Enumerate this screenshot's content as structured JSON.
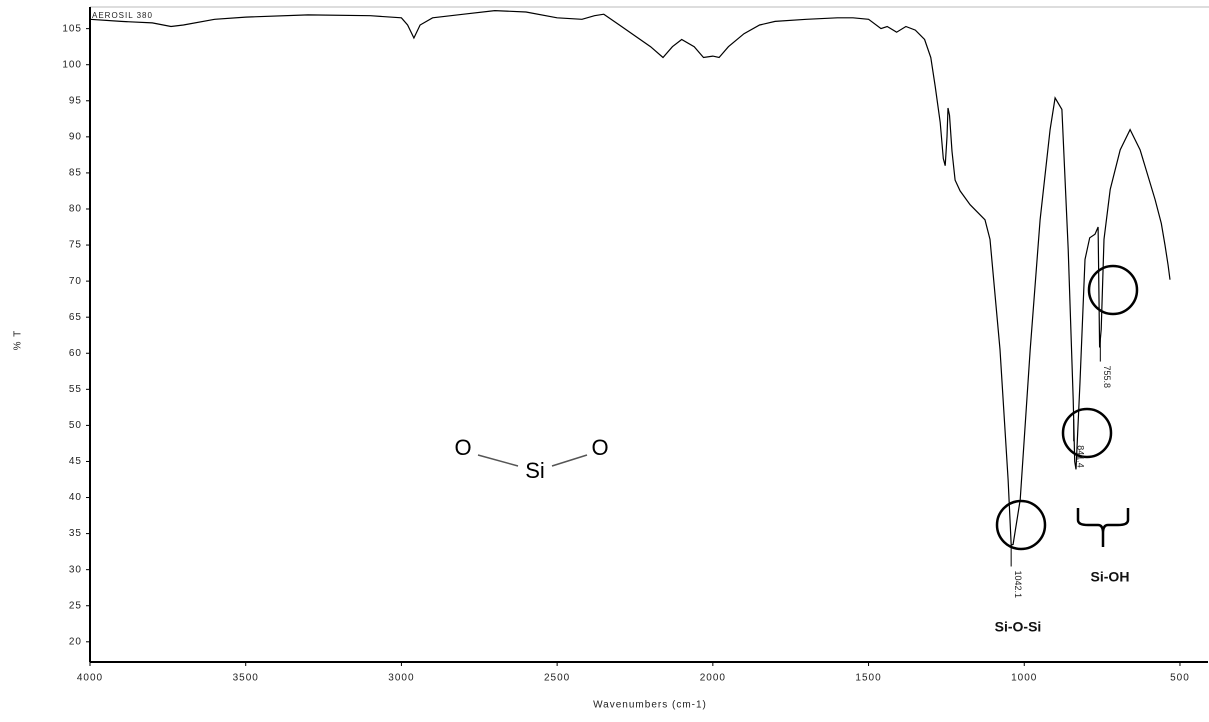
{
  "chart_data": {
    "type": "line",
    "sample_label": "AEROSIL 380",
    "x_label": "Wavenumbers (cm-1)",
    "y_label": "% T",
    "x": [
      4000,
      3900,
      3800,
      3740,
      3700,
      3600,
      3500,
      3300,
      3100,
      3000,
      2980,
      2960,
      2940,
      2900,
      2800,
      2700,
      2600,
      2500,
      2420,
      2380,
      2350,
      2300,
      2250,
      2200,
      2160,
      2130,
      2100,
      2060,
      2030,
      2000,
      1980,
      1950,
      1900,
      1850,
      1800,
      1700,
      1600,
      1550,
      1500,
      1460,
      1440,
      1410,
      1380,
      1350,
      1320,
      1300,
      1286,
      1270,
      1260,
      1254,
      1248,
      1245,
      1240,
      1232,
      1222,
      1206,
      1174,
      1126,
      1110,
      1078,
      1052,
      1042,
      1036,
      1013,
      981,
      949,
      917,
      901,
      879,
      859,
      843,
      838,
      834,
      821,
      805,
      790,
      773,
      763,
      758,
      753,
      744,
      724,
      692,
      660,
      628,
      580,
      560,
      548,
      538,
      532
    ],
    "values": [
      106.3,
      106,
      105.8,
      105.3,
      105.5,
      106.3,
      106.6,
      106.9,
      106.8,
      106.5,
      105.5,
      103.7,
      105.5,
      106.5,
      107,
      107.5,
      107.3,
      106.5,
      106.3,
      106.8,
      107,
      105.5,
      104,
      102.5,
      101,
      102.5,
      103.5,
      102.5,
      101,
      101.2,
      101,
      102.5,
      104.3,
      105.5,
      106,
      106.3,
      106.5,
      106.5,
      106.3,
      105,
      105.3,
      104.5,
      105.3,
      104.8,
      103.5,
      101,
      97,
      92,
      87,
      86,
      90,
      94,
      93,
      88,
      84,
      82.5,
      80.6,
      78.5,
      75.8,
      60.5,
      42.5,
      33.4,
      33.5,
      39.7,
      60.5,
      78.5,
      91,
      95.4,
      93.8,
      74.4,
      53.6,
      45,
      43.9,
      56,
      73,
      76,
      76.5,
      77.5,
      60.8,
      63.3,
      75.8,
      82.7,
      88.2,
      91,
      88.2,
      81.3,
      78,
      75,
      72.2,
      70.2
    ],
    "color": "#000000",
    "peaks": [
      1042.1,
      841.4,
      755.8
    ],
    "group_labels": [
      "Si-O-Si",
      "Si-OH"
    ],
    "structure": [
      "O",
      "Si",
      "O"
    ],
    "xlim": [
      4000,
      410
    ],
    "ylim": [
      17.2,
      108
    ],
    "xticks": [
      4000,
      3500,
      3000,
      2500,
      2000,
      1500,
      1000,
      500
    ],
    "yticks": [
      20,
      25,
      30,
      35,
      40,
      45,
      50,
      55,
      60,
      65,
      70,
      75,
      80,
      85,
      90,
      95,
      100,
      105
    ]
  }
}
